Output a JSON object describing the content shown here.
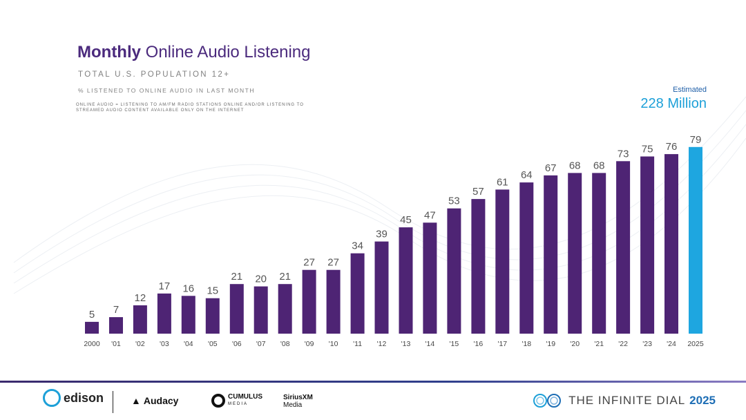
{
  "header": {
    "title_bold": "Monthly",
    "title_regular": "Online Audio Listening",
    "subtitle": "TOTAL U.S. POPULATION 12+",
    "measure": "% LISTENED TO ONLINE AUDIO IN LAST MONTH",
    "definition": "ONLINE AUDIO = LISTENING TO AM/FM RADIO STATIONS ONLINE AND/OR LISTENING TO STREAMED AUDIO CONTENT AVAILABLE ONLY ON THE INTERNET"
  },
  "estimate": {
    "label": "Estimated",
    "value": "228 Million"
  },
  "chart_data": {
    "type": "bar",
    "categories": [
      "2000",
      "'01",
      "'02",
      "'03",
      "'04",
      "'05",
      "'06",
      "'07",
      "'08",
      "'09",
      "'10",
      "'11",
      "'12",
      "'13",
      "'14",
      "'15",
      "'16",
      "'17",
      "'18",
      "'19",
      "'20",
      "'21",
      "'22",
      "'23",
      "'24",
      "2025"
    ],
    "values": [
      5,
      7,
      12,
      17,
      16,
      15,
      21,
      20,
      21,
      27,
      27,
      34,
      39,
      45,
      47,
      53,
      57,
      61,
      64,
      67,
      68,
      68,
      73,
      75,
      76,
      79
    ],
    "bar_color": "#4e2474",
    "highlight_color": "#1ea6e0",
    "highlight_index": 25,
    "ylim": [
      0,
      100
    ],
    "grid": false,
    "legend": "none"
  },
  "footer": {
    "logos": {
      "edison": "edison",
      "audacy": "Audacy",
      "cumulus": "CUMULUS",
      "cumulus_sub": "MEDIA",
      "sirius": "SiriusXM",
      "sirius_sub": "Media",
      "infinite": "THE INFINITE DIAL",
      "infinite_year": "2025"
    },
    "icons": {
      "audacy": "audacy-logo-icon",
      "cumulus": "cumulus-logo-icon",
      "infinite": "infinity-waves-icon",
      "edison": "edison-logo-icon"
    }
  }
}
